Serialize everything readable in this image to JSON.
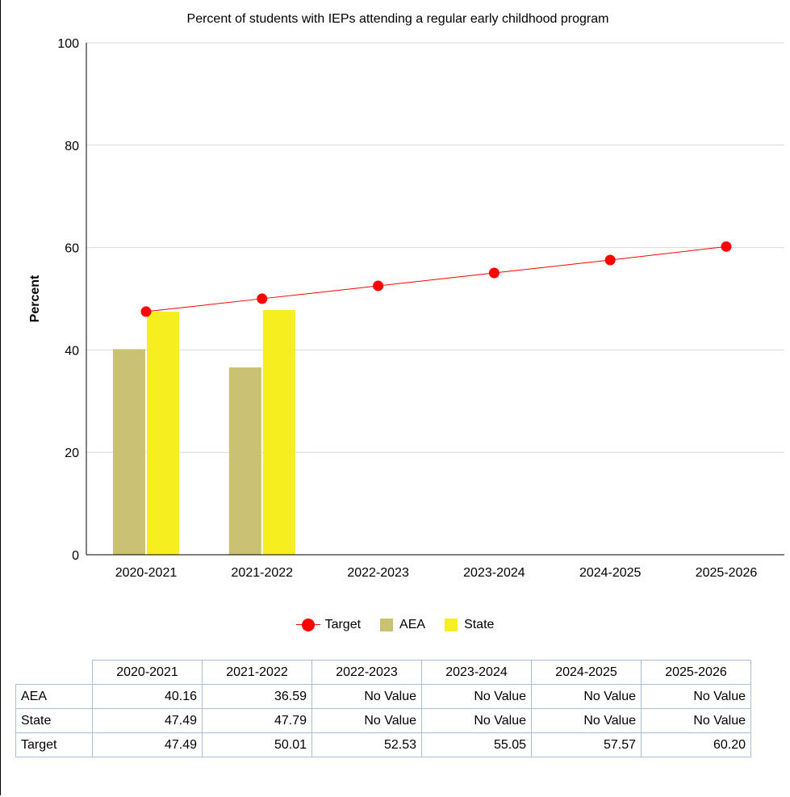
{
  "chart_data": {
    "type": "bar",
    "title": "Percent of students with IEPs attending a regular early childhood program",
    "xlabel": "",
    "ylabel": "Percent",
    "ylim": [
      0,
      100
    ],
    "yticks": [
      0,
      20,
      40,
      60,
      80,
      100
    ],
    "grid": true,
    "legend_position": "bottom",
    "categories": [
      "2020-2021",
      "2021-2022",
      "2022-2023",
      "2023-2024",
      "2024-2025",
      "2025-2026"
    ],
    "series": [
      {
        "name": "Target",
        "type": "line",
        "color": "#ff0000",
        "values": [
          47.49,
          50.01,
          52.53,
          55.05,
          57.57,
          60.2
        ]
      },
      {
        "name": "AEA",
        "type": "bar",
        "color": "#cbc173",
        "values": [
          40.16,
          36.59,
          null,
          null,
          null,
          null
        ]
      },
      {
        "name": "State",
        "type": "bar",
        "color": "#f7ee1f",
        "values": [
          47.49,
          47.79,
          null,
          null,
          null,
          null
        ]
      }
    ]
  },
  "legend": {
    "target": "Target",
    "aea": "AEA",
    "state": "State"
  },
  "table": {
    "headers": [
      "2020-2021",
      "2021-2022",
      "2022-2023",
      "2023-2024",
      "2024-2025",
      "2025-2026"
    ],
    "rows": [
      {
        "label": "AEA",
        "cells": [
          "40.16",
          "36.59",
          "No Value",
          "No Value",
          "No Value",
          "No Value"
        ]
      },
      {
        "label": "State",
        "cells": [
          "47.49",
          "47.79",
          "No Value",
          "No Value",
          "No Value",
          "No Value"
        ]
      },
      {
        "label": "Target",
        "cells": [
          "47.49",
          "50.01",
          "52.53",
          "55.05",
          "57.57",
          "60.20"
        ]
      }
    ]
  }
}
